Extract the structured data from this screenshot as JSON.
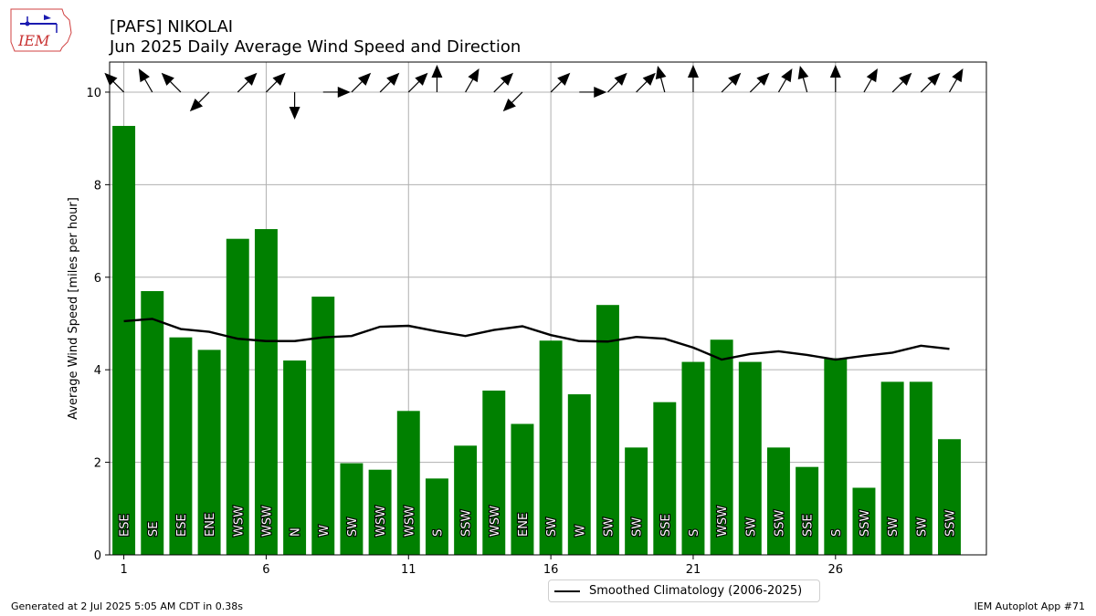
{
  "header": {
    "title": "[PAFS] NIKOLAI",
    "subtitle": "Jun 2025 Daily Average Wind Speed and Direction",
    "logo_text": "IEM"
  },
  "footer": {
    "left": "Generated at 2 Jul 2025 5:05 AM CDT in 0.38s",
    "right": "IEM Autoplot App #71"
  },
  "legend": {
    "label": "Smoothed Climatology (2006-2025)",
    "color": "#000000"
  },
  "colors": {
    "bar": "#008000",
    "grid": "#b0b0b0",
    "line": "#000000"
  },
  "chart_data": {
    "type": "bar",
    "title": "[PAFS] NIKOLAI",
    "subtitle": "Jun 2025 Daily Average Wind Speed and Direction",
    "xlabel": "",
    "ylabel": "Average Wind Speed [miles per hour]",
    "x_ticks": [
      1,
      6,
      11,
      16,
      21,
      26
    ],
    "y_ticks": [
      0,
      2,
      4,
      6,
      8,
      10
    ],
    "ylim": [
      0,
      10.65
    ],
    "xlim": [
      0.5,
      31.3
    ],
    "grid": true,
    "legend_position": "bottom-center",
    "days": [
      1,
      2,
      3,
      4,
      5,
      6,
      7,
      8,
      9,
      10,
      11,
      12,
      13,
      14,
      15,
      16,
      17,
      18,
      19,
      20,
      21,
      22,
      23,
      24,
      25,
      26,
      27,
      28,
      29,
      30
    ],
    "series": [
      {
        "name": "Average Wind Speed",
        "values": [
          9.27,
          5.7,
          4.7,
          4.43,
          6.83,
          7.04,
          4.2,
          5.58,
          1.98,
          1.84,
          3.11,
          1.65,
          2.36,
          3.55,
          2.83,
          4.63,
          3.47,
          5.4,
          2.32,
          3.3,
          4.17,
          4.65,
          4.17,
          2.32,
          1.9,
          4.25,
          1.45,
          3.74,
          3.74,
          2.5
        ]
      },
      {
        "name": "Smoothed Climatology (2006-2025)",
        "values": [
          5.05,
          5.1,
          4.88,
          4.82,
          4.67,
          4.62,
          4.62,
          4.7,
          4.73,
          4.93,
          4.95,
          4.83,
          4.73,
          4.86,
          4.94,
          4.75,
          4.62,
          4.61,
          4.71,
          4.67,
          4.48,
          4.22,
          4.34,
          4.4,
          4.32,
          4.22,
          4.3,
          4.37,
          4.52,
          4.45
        ]
      }
    ],
    "directions": [
      "ESE",
      "SE",
      "ESE",
      "ENE",
      "WSW",
      "WSW",
      "N",
      "W",
      "SW",
      "WSW",
      "WSW",
      "S",
      "SSW",
      "WSW",
      "ENE",
      "SW",
      "W",
      "SW",
      "SW",
      "SSE",
      "S",
      "WSW",
      "SW",
      "SSW",
      "SSE",
      "S",
      "SSW",
      "SW",
      "SW",
      "SSW"
    ],
    "arrow_to_degrees": [
      315,
      330,
      315,
      225,
      45,
      45,
      180,
      90,
      45,
      45,
      45,
      0,
      30,
      45,
      225,
      45,
      90,
      45,
      45,
      345,
      0,
      45,
      45,
      30,
      345,
      0,
      30,
      45,
      45,
      30
    ]
  }
}
